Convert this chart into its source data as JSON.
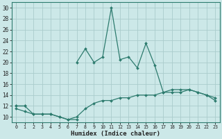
{
  "xlabel": "Humidex (Indice chaleur)",
  "x": [
    0,
    1,
    2,
    3,
    4,
    5,
    6,
    7,
    8,
    9,
    10,
    11,
    12,
    13,
    14,
    15,
    16,
    17,
    18,
    19,
    20,
    21,
    22,
    23
  ],
  "line_top": [
    12,
    12,
    null,
    null,
    null,
    null,
    null,
    20,
    22.5,
    20,
    21,
    30,
    20.5,
    21,
    19,
    23.5,
    19.5,
    14.5,
    15,
    15,
    15,
    14.5,
    14,
    13
  ],
  "line_mid": [
    12,
    12,
    10.5,
    10.5,
    10.5,
    10,
    9.5,
    10,
    11.5,
    12.5,
    13,
    13,
    13.5,
    13.5,
    14,
    14,
    14,
    14.5,
    14.5,
    14.5,
    15,
    14.5,
    14,
    13.5
  ],
  "line_bot": [
    11.5,
    11,
    10.5,
    10.5,
    10.5,
    10,
    9.5,
    9.5,
    null,
    null,
    null,
    null,
    null,
    null,
    null,
    null,
    null,
    null,
    null,
    null,
    null,
    null,
    null,
    null
  ],
  "color": "#2d7b6e",
  "bg_color": "#cce8e8",
  "grid_color": "#aacccc",
  "ylim": [
    9,
    31
  ],
  "xlim": [
    -0.5,
    23.5
  ],
  "yticks": [
    10,
    12,
    14,
    16,
    18,
    20,
    22,
    24,
    26,
    28,
    30
  ],
  "xticks": [
    0,
    1,
    2,
    3,
    4,
    5,
    6,
    7,
    8,
    9,
    10,
    11,
    12,
    13,
    14,
    15,
    16,
    17,
    18,
    19,
    20,
    21,
    22,
    23
  ]
}
